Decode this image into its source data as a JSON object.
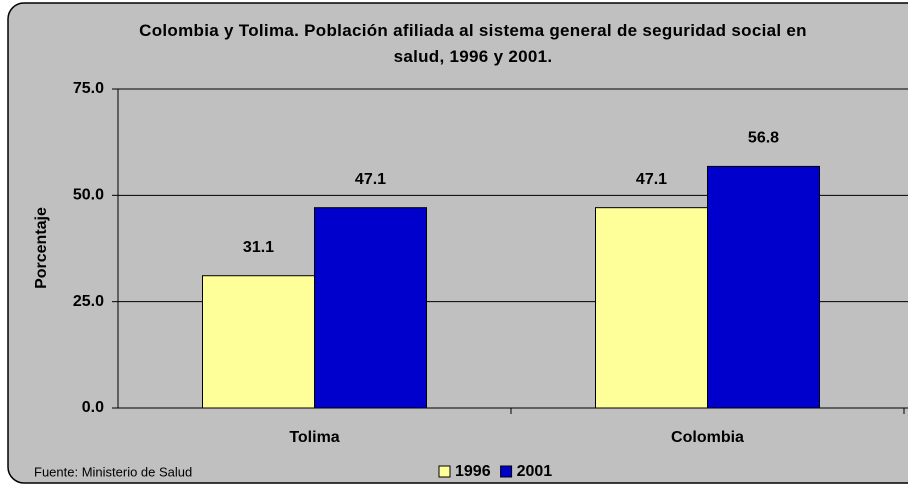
{
  "chart_data": {
    "type": "bar",
    "title": "Colombia y Tolima.  Población afiliada al sistema general de seguridad social en salud, 1996 y 2001.",
    "ylabel": "Porcentaje",
    "source": "Fuente: Ministerio de Salud",
    "categories": [
      "Tolima",
      "Colombia"
    ],
    "series": [
      {
        "name": "1996",
        "color": "#ffff99",
        "values": [
          31.1,
          47.1
        ]
      },
      {
        "name": "2001",
        "color": "#0000cc",
        "values": [
          47.1,
          56.8
        ]
      }
    ],
    "ylim": [
      0,
      75
    ],
    "yticks": [
      {
        "value": 0,
        "label": "0.0"
      },
      {
        "value": 25,
        "label": "25.0"
      },
      {
        "value": 50,
        "label": "50.0"
      },
      {
        "value": 75,
        "label": "75.0"
      }
    ],
    "grid": true,
    "legend": "bottom"
  }
}
